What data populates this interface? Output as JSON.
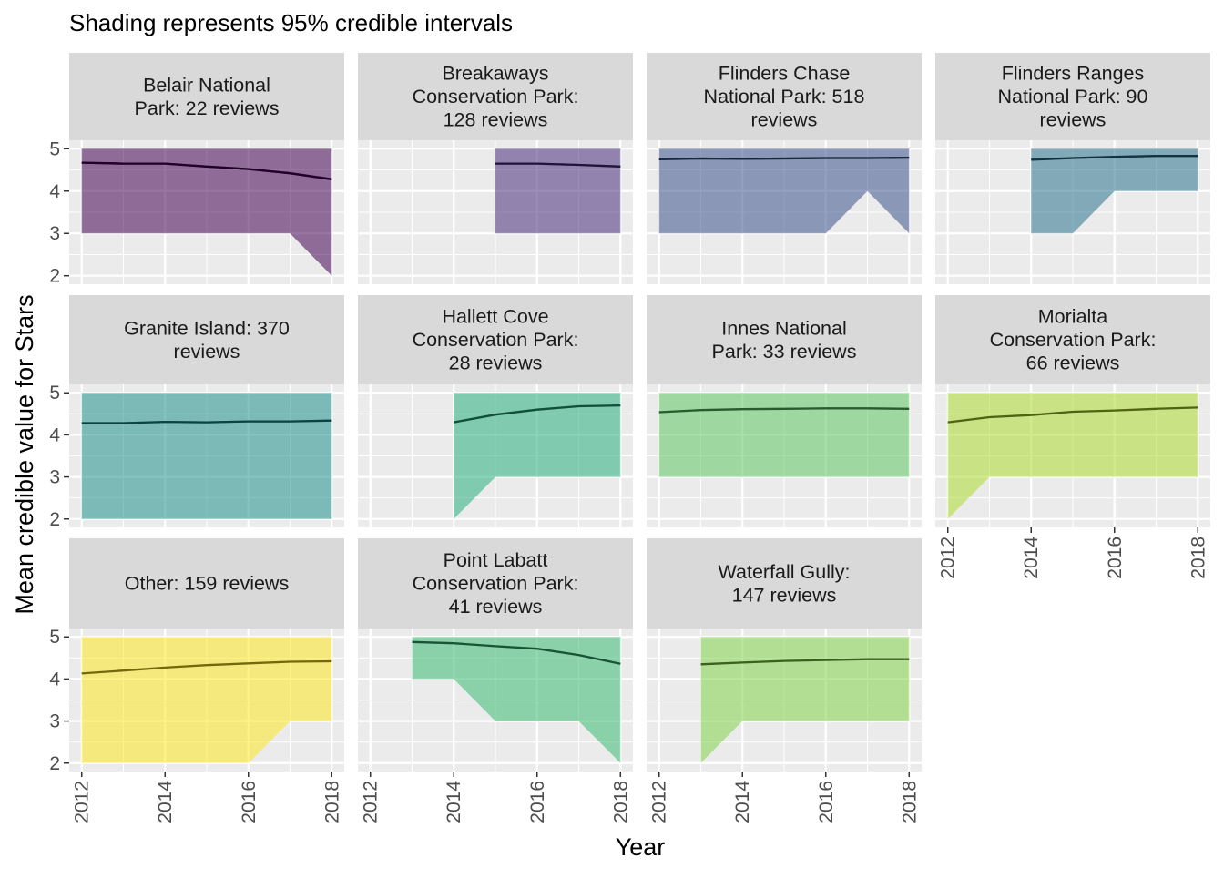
{
  "chart_data": {
    "type": "area",
    "title": "Shading represents 95% credible intervals",
    "xlabel": "Year",
    "ylabel": "Mean credible value for Stars",
    "xlim": [
      2011.7,
      2018.3
    ],
    "ylim": [
      1.8,
      5.2
    ],
    "x_ticks": [
      "2012",
      "2014",
      "2016",
      "2018"
    ],
    "y_ticks": [
      "2",
      "3",
      "4",
      "5"
    ],
    "grid": true,
    "legend": "none",
    "panels": [
      {
        "label": "Belair National\nPark: 22 reviews",
        "color": "#440154",
        "x": [
          2012,
          2013,
          2014,
          2015,
          2016,
          2017,
          2018
        ],
        "mean": [
          4.67,
          4.65,
          4.65,
          4.58,
          4.52,
          4.42,
          4.28
        ],
        "lower": [
          3,
          3,
          3,
          3,
          3,
          3,
          2
        ],
        "upper": [
          5,
          5,
          5,
          5,
          5,
          5,
          5
        ]
      },
      {
        "label": "Breakaways\nConservation Park:\n128 reviews",
        "color": "#472d7b",
        "x": [
          2015,
          2016,
          2017,
          2018
        ],
        "mean": [
          4.65,
          4.65,
          4.62,
          4.58
        ],
        "lower": [
          3,
          3,
          3,
          3
        ],
        "upper": [
          5,
          5,
          5,
          5
        ]
      },
      {
        "label": "Flinders Chase\nNational Park: 518\nreviews",
        "color": "#3b528b",
        "x": [
          2012,
          2013,
          2014,
          2015,
          2016,
          2017,
          2018
        ],
        "mean": [
          4.75,
          4.77,
          4.76,
          4.77,
          4.78,
          4.78,
          4.79
        ],
        "lower": [
          3,
          3,
          3,
          3,
          3,
          4,
          3
        ],
        "upper": [
          5,
          5,
          5,
          5,
          5,
          5,
          5
        ]
      },
      {
        "label": "Flinders Ranges\nNational Park: 90\nreviews",
        "color": "#2c728e",
        "x": [
          2014,
          2015,
          2016,
          2017,
          2018
        ],
        "mean": [
          4.74,
          4.78,
          4.81,
          4.83,
          4.83
        ],
        "lower": [
          3,
          3,
          4,
          4,
          4
        ],
        "upper": [
          5,
          5,
          5,
          5,
          5
        ]
      },
      {
        "label": "Granite Island: 370\nreviews",
        "color": "#21918c",
        "x": [
          2012,
          2013,
          2014,
          2015,
          2016,
          2017,
          2018
        ],
        "mean": [
          4.28,
          4.28,
          4.31,
          4.3,
          4.32,
          4.32,
          4.34
        ],
        "lower": [
          2,
          2,
          2,
          2,
          2,
          2,
          2
        ],
        "upper": [
          5,
          5,
          5,
          5,
          5,
          5,
          5
        ]
      },
      {
        "label": "Hallett Cove\nConservation Park:\n28 reviews",
        "color": "#28ae80",
        "x": [
          2014,
          2015,
          2016,
          2017,
          2018
        ],
        "mean": [
          4.3,
          4.48,
          4.6,
          4.68,
          4.7
        ],
        "lower": [
          2,
          3,
          3,
          3,
          3
        ],
        "upper": [
          5,
          5,
          5,
          5,
          5
        ]
      },
      {
        "label": "Innes National\nPark: 33 reviews",
        "color": "#5ec962",
        "x": [
          2012,
          2013,
          2014,
          2015,
          2016,
          2017,
          2018
        ],
        "mean": [
          4.54,
          4.59,
          4.61,
          4.62,
          4.63,
          4.63,
          4.62
        ],
        "lower": [
          3,
          3,
          3,
          3,
          3,
          3,
          3
        ],
        "upper": [
          5,
          5,
          5,
          5,
          5,
          5,
          5
        ]
      },
      {
        "label": "Morialta\nConservation Park:\n66 reviews",
        "color": "#addc30",
        "x": [
          2012,
          2013,
          2014,
          2015,
          2016,
          2017,
          2018
        ],
        "mean": [
          4.3,
          4.42,
          4.47,
          4.55,
          4.58,
          4.62,
          4.65
        ],
        "lower": [
          2,
          3,
          3,
          3,
          3,
          3,
          3
        ],
        "upper": [
          5,
          5,
          5,
          5,
          5,
          5,
          5
        ]
      },
      {
        "label": "Other: 159 reviews",
        "color": "#fde725",
        "x": [
          2012,
          2013,
          2014,
          2015,
          2016,
          2017,
          2018
        ],
        "mean": [
          4.13,
          4.2,
          4.27,
          4.33,
          4.37,
          4.41,
          4.42
        ],
        "lower": [
          2,
          2,
          2,
          2,
          2,
          3,
          3
        ],
        "upper": [
          5,
          5,
          5,
          5,
          5,
          5,
          5
        ]
      },
      {
        "label": "Point Labatt\nConservation Park:\n41 reviews",
        "color": "#3bbb75",
        "x": [
          2013,
          2014,
          2015,
          2016,
          2017,
          2018
        ],
        "mean": [
          4.88,
          4.85,
          4.78,
          4.72,
          4.57,
          4.36
        ],
        "lower": [
          4,
          4,
          3,
          3,
          3,
          2
        ],
        "upper": [
          5,
          5,
          5,
          5,
          5,
          5
        ]
      },
      {
        "label": "Waterfall Gully:\n147 reviews",
        "color": "#84d44b",
        "x": [
          2013,
          2014,
          2015,
          2016,
          2017,
          2018
        ],
        "mean": [
          4.35,
          4.39,
          4.43,
          4.45,
          4.47,
          4.47
        ],
        "lower": [
          2,
          3,
          3,
          3,
          3,
          3
        ],
        "upper": [
          5,
          5,
          5,
          5,
          5,
          5
        ]
      }
    ]
  }
}
